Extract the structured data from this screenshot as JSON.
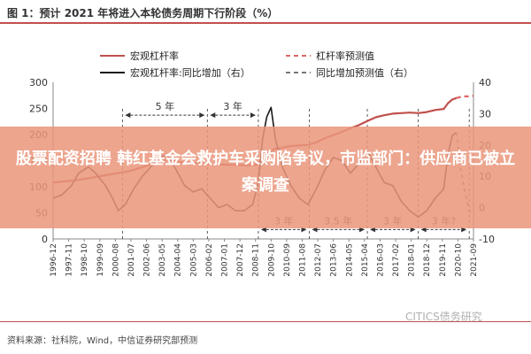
{
  "figure": {
    "title": "图 1：预计 2021 年将进入本轮债务周期下行阶段（%）",
    "source": "资料来源：社科院，Wind，中信证券研究部预测",
    "watermark": "CITICS债务研究"
  },
  "banner": {
    "text": "股票配资招聘 韩红基金会救护车采购陷争议，市监部门：供应商已被立案调查",
    "color": "#ea967c"
  },
  "colors": {
    "leverage": "#c0504d",
    "leverage_forecast": "#e06666",
    "yoy": "#1a1a1a",
    "yoy_forecast": "#777777",
    "title_rule": "#c0504d"
  },
  "chart_data": {
    "type": "line",
    "legend": [
      {
        "label": "宏观杠杆率",
        "style": "solid",
        "color": "#c0504d"
      },
      {
        "label": "杠杆率预测值",
        "style": "dashed",
        "color": "#e06666"
      },
      {
        "label": "宏观杠杆率:同比增加（右）",
        "style": "solid",
        "color": "#1a1a1a"
      },
      {
        "label": "同比增加预测值（右）",
        "style": "dashed",
        "color": "#777777"
      }
    ],
    "left_axis": {
      "ylim": [
        0,
        300
      ],
      "ticks": [
        "0",
        "50",
        "100",
        "150",
        "200",
        "250",
        "300"
      ]
    },
    "right_axis": {
      "ylim": [
        -10,
        40
      ],
      "ticks": [
        "-10",
        "0",
        "10",
        "20",
        "30",
        "40"
      ]
    },
    "x_axis": {
      "range": [
        "1996-12",
        "2021-09"
      ],
      "ticks": [
        "1996-12",
        "1997-11",
        "1998-10",
        "1999-09",
        "2000-08",
        "2001-07",
        "2002-06",
        "2003-05",
        "2004-04",
        "2005-03",
        "2006-02",
        "2007-01",
        "2007-12",
        "2008-11",
        "2009-10",
        "2010-09",
        "2011-08",
        "2012-07",
        "2013-06",
        "2014-05",
        "2015-04",
        "2016-03",
        "2017-02",
        "2018-01",
        "2018-12",
        "2019-11",
        "2020-10",
        "2021-09"
      ]
    },
    "series": [
      {
        "name": "宏观杠杆率",
        "axis": "left",
        "style": "solid",
        "points": [
          [
            "1996-12",
            108
          ],
          [
            "1998-06",
            113
          ],
          [
            "2000-01",
            122
          ],
          [
            "2001-06",
            130
          ],
          [
            "2002-06",
            140
          ],
          [
            "2003-06",
            152
          ],
          [
            "2004-01",
            150
          ],
          [
            "2004-06",
            147
          ],
          [
            "2005-06",
            145
          ],
          [
            "2006-06",
            143
          ],
          [
            "2007-06",
            142
          ],
          [
            "2008-06",
            141
          ],
          [
            "2008-12",
            142
          ],
          [
            "2009-06",
            162
          ],
          [
            "2009-12",
            172
          ],
          [
            "2010-06",
            175
          ],
          [
            "2010-12",
            178
          ],
          [
            "2011-06",
            179
          ],
          [
            "2011-12",
            180
          ],
          [
            "2012-06",
            185
          ],
          [
            "2012-12",
            193
          ],
          [
            "2013-06",
            199
          ],
          [
            "2013-12",
            205
          ],
          [
            "2014-06",
            212
          ],
          [
            "2014-12",
            218
          ],
          [
            "2015-06",
            226
          ],
          [
            "2015-12",
            233
          ],
          [
            "2016-06",
            237
          ],
          [
            "2016-12",
            240
          ],
          [
            "2017-06",
            241
          ],
          [
            "2017-12",
            242
          ],
          [
            "2018-06",
            241
          ],
          [
            "2018-12",
            243
          ],
          [
            "2019-06",
            247
          ],
          [
            "2019-12",
            249
          ],
          [
            "2020-03",
            260
          ],
          [
            "2020-06",
            267
          ],
          [
            "2020-09",
            270
          ]
        ]
      },
      {
        "name": "杠杆率预测值",
        "axis": "left",
        "style": "dashed",
        "points": [
          [
            "2020-09",
            270
          ],
          [
            "2020-12",
            272
          ],
          [
            "2021-03",
            273
          ],
          [
            "2021-06",
            273
          ],
          [
            "2021-09",
            274
          ]
        ]
      },
      {
        "name": "宏观杠杆率:同比增加（右）",
        "axis": "right",
        "style": "solid",
        "points": [
          [
            "1996-12",
            3
          ],
          [
            "1997-06",
            4
          ],
          [
            "1998-01",
            7
          ],
          [
            "1998-06",
            11
          ],
          [
            "1999-01",
            13
          ],
          [
            "1999-06",
            11
          ],
          [
            "2000-01",
            7
          ],
          [
            "2000-06",
            3
          ],
          [
            "2000-10",
            -1
          ],
          [
            "2001-03",
            1
          ],
          [
            "2001-09",
            6
          ],
          [
            "2002-03",
            10
          ],
          [
            "2002-09",
            13
          ],
          [
            "2003-03",
            16
          ],
          [
            "2003-09",
            17
          ],
          [
            "2004-03",
            12
          ],
          [
            "2004-09",
            7
          ],
          [
            "2005-03",
            5
          ],
          [
            "2005-09",
            6
          ],
          [
            "2006-03",
            3
          ],
          [
            "2006-09",
            0
          ],
          [
            "2007-03",
            1
          ],
          [
            "2007-09",
            -1
          ],
          [
            "2008-03",
            -1
          ],
          [
            "2008-09",
            1
          ],
          [
            "2009-01",
            8
          ],
          [
            "2009-04",
            22
          ],
          [
            "2009-07",
            29
          ],
          [
            "2009-10",
            32
          ],
          [
            "2010-01",
            22
          ],
          [
            "2010-06",
            13
          ],
          [
            "2010-12",
            7
          ],
          [
            "2011-06",
            3
          ],
          [
            "2011-12",
            1
          ],
          [
            "2012-06",
            6
          ],
          [
            "2012-12",
            12
          ],
          [
            "2013-06",
            16
          ],
          [
            "2013-12",
            15
          ],
          [
            "2014-06",
            11
          ],
          [
            "2014-12",
            14
          ],
          [
            "2015-06",
            18
          ],
          [
            "2015-12",
            13
          ],
          [
            "2016-06",
            8
          ],
          [
            "2016-12",
            7
          ],
          [
            "2017-06",
            2
          ],
          [
            "2017-12",
            -1
          ],
          [
            "2018-06",
            -3
          ],
          [
            "2018-12",
            -1
          ],
          [
            "2019-06",
            3
          ],
          [
            "2019-12",
            6
          ],
          [
            "2020-03",
            17
          ],
          [
            "2020-06",
            23
          ],
          [
            "2020-09",
            24
          ]
        ]
      },
      {
        "name": "同比增加预测值（右）",
        "axis": "right",
        "style": "dashed",
        "points": [
          [
            "2020-09",
            24
          ],
          [
            "2020-12",
            12
          ],
          [
            "2021-03",
            5
          ],
          [
            "2021-06",
            -1
          ],
          [
            "2021-09",
            -2
          ]
        ]
      }
    ],
    "annotations": [
      {
        "text": "5 年",
        "from": "2001-01",
        "to": "2006-01",
        "axis": "left",
        "y": 237
      },
      {
        "text": "3 年",
        "from": "2006-01",
        "to": "2009-01",
        "axis": "left",
        "y": 237
      },
      {
        "text": "3 年",
        "from": "2009-01",
        "to": "2012-01",
        "axis": "left",
        "y": 18
      },
      {
        "text": "3.5 年",
        "from": "2012-01",
        "to": "2015-06",
        "axis": "left",
        "y": 18
      },
      {
        "text": "3 年",
        "from": "2015-06",
        "to": "2018-06",
        "axis": "left",
        "y": 18
      },
      {
        "text": "3 年?",
        "from": "2018-06",
        "to": "2021-06",
        "axis": "left",
        "y": 18
      }
    ],
    "vlines": [
      "2001-01",
      "2006-01",
      "2009-01",
      "2012-01",
      "2015-06",
      "2018-06",
      "2021-06"
    ]
  }
}
